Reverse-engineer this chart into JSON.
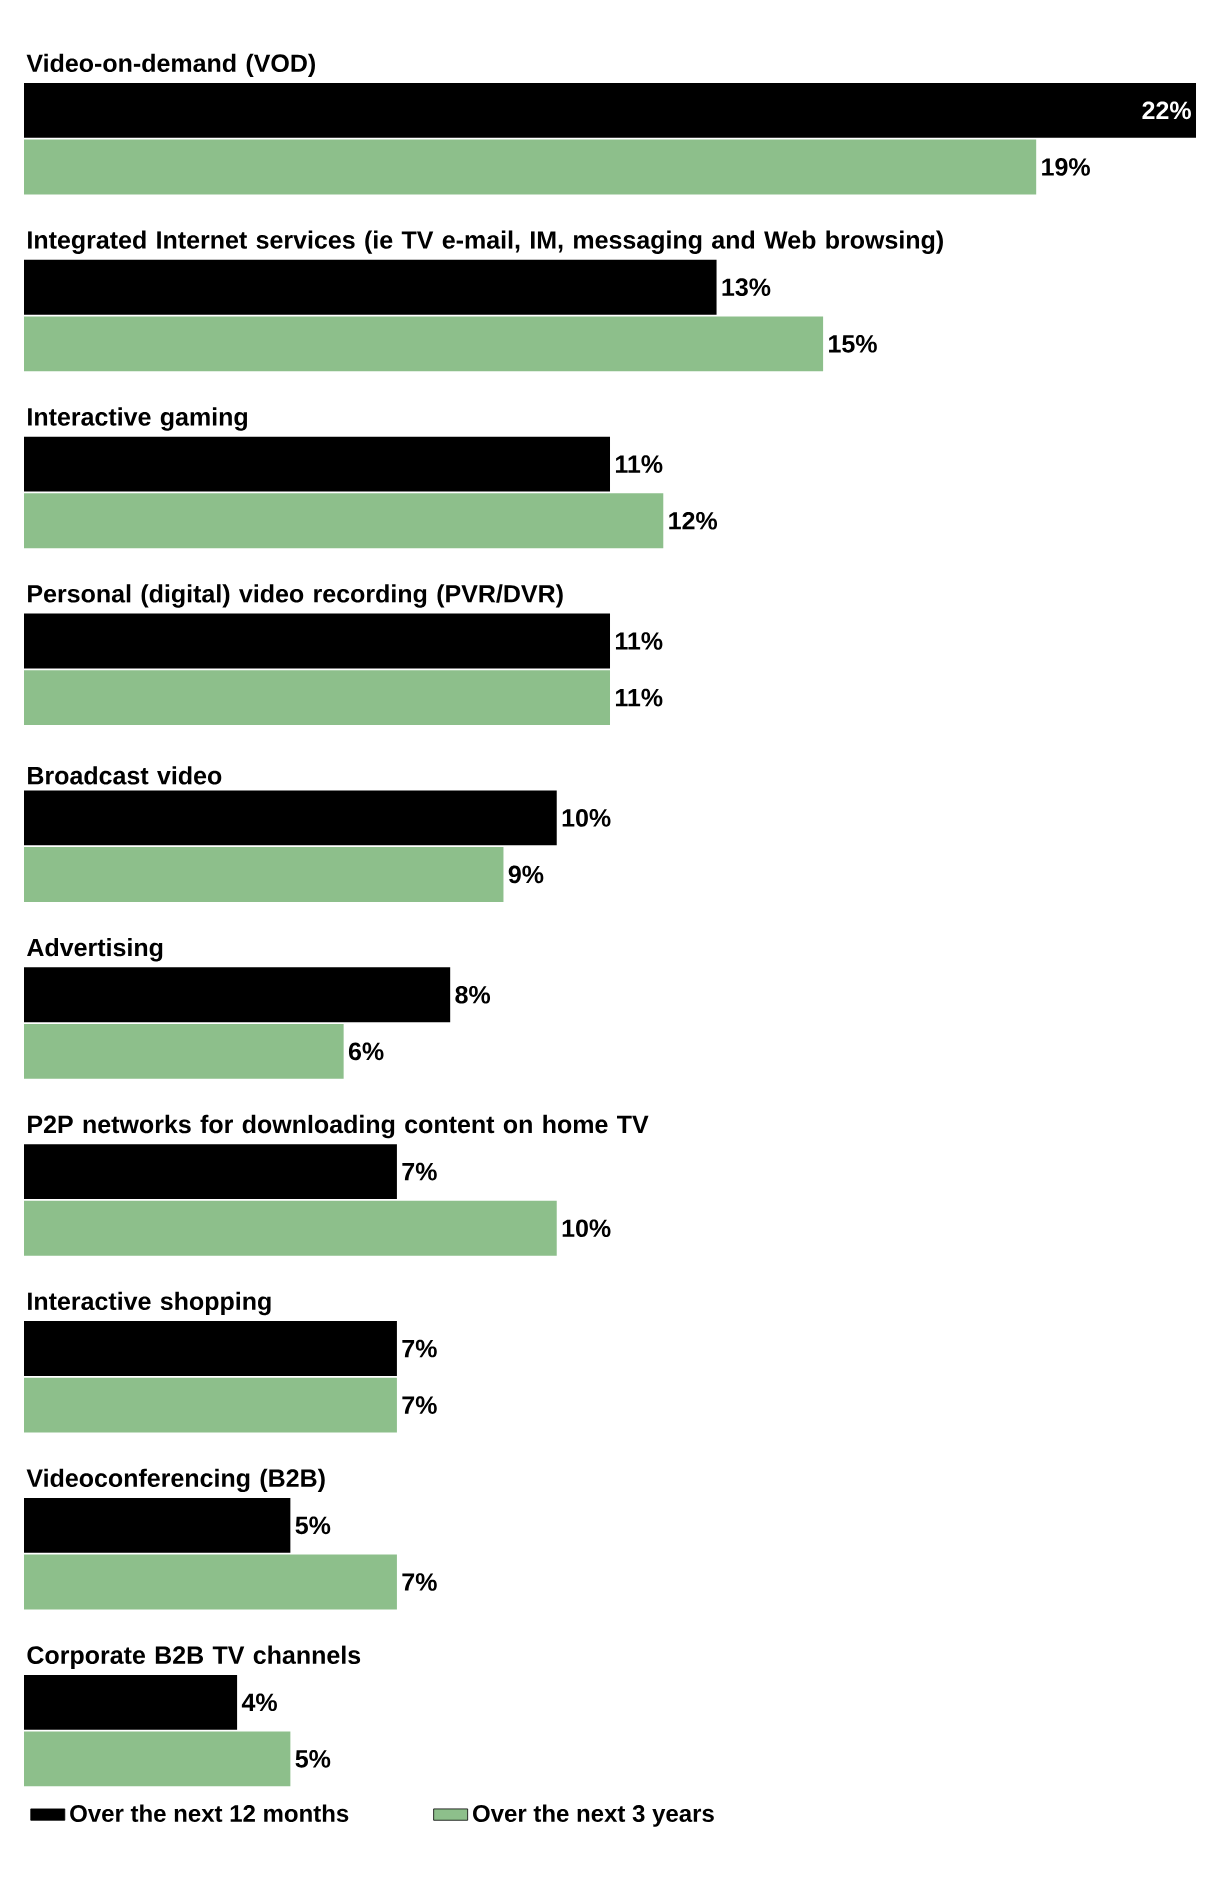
{
  "chart_data": {
    "type": "bar",
    "orientation": "horizontal",
    "data_labels": true,
    "legend": "bottom",
    "categories": [
      "Video-on-demand (VOD)",
      "Integrated Internet services (ie TV e-mail, IM, messaging and Web browsing)",
      "Interactive gaming",
      "Personal (digital) video recording (PVR/DVR)",
      "Broadcast video",
      "Advertising",
      "P2P networks for downloading content on home TV",
      "Interactive shopping",
      "Videoconferencing (B2B)",
      "Corporate B2B TV channels"
    ],
    "series": [
      {
        "name": "Over the next 12 months",
        "color": "#000000",
        "values": [
          22,
          13,
          11,
          11,
          10,
          8,
          7,
          7,
          5,
          4
        ],
        "value_labels": [
          "22%",
          "13%",
          "11%",
          "11%",
          "10%",
          "8%",
          "7%",
          "7%",
          "5%",
          "4%"
        ]
      },
      {
        "name": "Over the next 3 years",
        "color": "#8dbf8b",
        "values": [
          19,
          15,
          12,
          11,
          9,
          6,
          10,
          7,
          7,
          5
        ],
        "value_labels": [
          "19%",
          "15%",
          "12%",
          "11%",
          "9%",
          "6%",
          "10%",
          "7%",
          "7%",
          "5%"
        ]
      }
    ]
  }
}
